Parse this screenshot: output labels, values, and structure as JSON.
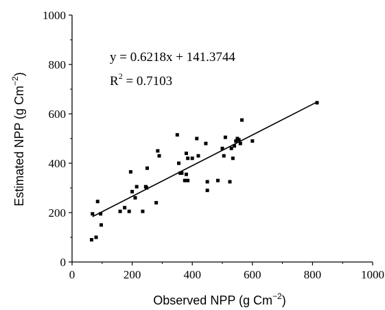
{
  "chart_data": {
    "type": "scatter",
    "xlabel": {
      "text": "Observed NPP (g Cm",
      "sup": "−2",
      "close": ")"
    },
    "ylabel": {
      "text": "Estimated NPP (g Cm",
      "sup": "−2",
      "close": ")"
    },
    "xlim": [
      0,
      1000
    ],
    "ylim": [
      0,
      1000
    ],
    "x_ticks": [
      0,
      200,
      400,
      600,
      800,
      1000
    ],
    "y_ticks": [
      0,
      200,
      400,
      600,
      800,
      1000
    ],
    "x_tick_labels": [
      "0",
      "200",
      "400",
      "600",
      "800",
      "1000"
    ],
    "y_tick_labels": [
      "0",
      "200",
      "400",
      "600",
      "800",
      "1000"
    ],
    "grid": false,
    "legend": "none",
    "annotations": {
      "equation": "y = 0.6218x + 141.3744",
      "r2_prefix": "R",
      "r2_sup": "2",
      "r2_value": " = 0.7103"
    },
    "fit_line": {
      "slope": 0.6218,
      "intercept": 141.3744,
      "x_range": [
        68,
        815
      ]
    },
    "points": [
      [
        65,
        90
      ],
      [
        68,
        195
      ],
      [
        80,
        100
      ],
      [
        85,
        245
      ],
      [
        95,
        195
      ],
      [
        97,
        150
      ],
      [
        160,
        205
      ],
      [
        175,
        220
      ],
      [
        190,
        205
      ],
      [
        195,
        365
      ],
      [
        200,
        285
      ],
      [
        210,
        260
      ],
      [
        215,
        305
      ],
      [
        235,
        205
      ],
      [
        245,
        305
      ],
      [
        248,
        300
      ],
      [
        250,
        380
      ],
      [
        280,
        240
      ],
      [
        285,
        450
      ],
      [
        290,
        430
      ],
      [
        350,
        515
      ],
      [
        355,
        400
      ],
      [
        360,
        360
      ],
      [
        365,
        360
      ],
      [
        375,
        330
      ],
      [
        380,
        440
      ],
      [
        380,
        355
      ],
      [
        385,
        420
      ],
      [
        385,
        330
      ],
      [
        400,
        420
      ],
      [
        415,
        500
      ],
      [
        420,
        430
      ],
      [
        445,
        480
      ],
      [
        450,
        290
      ],
      [
        450,
        325
      ],
      [
        485,
        330
      ],
      [
        500,
        460
      ],
      [
        505,
        430
      ],
      [
        510,
        505
      ],
      [
        525,
        325
      ],
      [
        530,
        460
      ],
      [
        535,
        420
      ],
      [
        540,
        470
      ],
      [
        545,
        490
      ],
      [
        550,
        500
      ],
      [
        555,
        495
      ],
      [
        560,
        480
      ],
      [
        565,
        575
      ],
      [
        600,
        490
      ],
      [
        815,
        645
      ]
    ],
    "colors": {
      "points": "#000000",
      "line": "#000000",
      "axis": "#000000"
    }
  }
}
